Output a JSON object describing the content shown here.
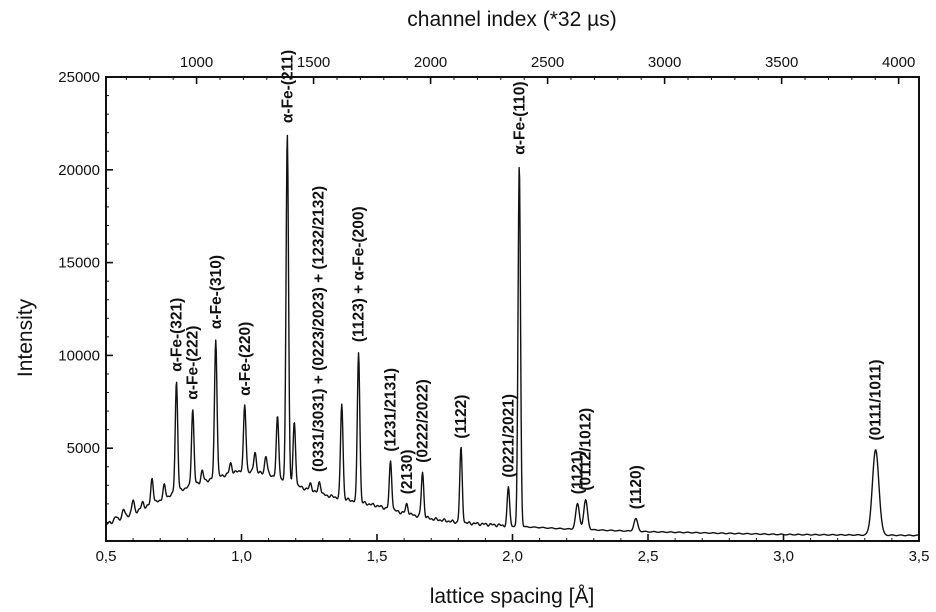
{
  "chart_data": {
    "type": "line",
    "title": "",
    "xlabel": "lattice spacing [Å]",
    "ylabel": "Intensity",
    "top_xlabel": "channel index (*32 µs)",
    "xlim": [
      0.5,
      3.5
    ],
    "ylim": [
      0,
      25000
    ],
    "top_xlim": [
      613,
      4087
    ],
    "x_ticks": [
      0.5,
      1.0,
      1.5,
      2.0,
      2.5,
      3.0,
      3.5
    ],
    "x_tick_labels": [
      "0,5",
      "1,0",
      "1,5",
      "2,0",
      "2,5",
      "3,0",
      "3,5"
    ],
    "y_ticks": [
      5000,
      10000,
      15000,
      20000,
      25000
    ],
    "y_tick_labels": [
      "5000",
      "10000",
      "15000",
      "20000",
      "25000"
    ],
    "top_ticks": [
      1000,
      1500,
      2000,
      2500,
      3000,
      3500,
      4000
    ],
    "top_tick_labels": [
      "1000",
      "1500",
      "2000",
      "2500",
      "3000",
      "3500",
      "4000"
    ],
    "grid": false,
    "baseline": [
      [
        0.5,
        900
      ],
      [
        0.6,
        1500
      ],
      [
        0.7,
        2200
      ],
      [
        0.8,
        2900
      ],
      [
        0.9,
        3400
      ],
      [
        1.0,
        3800
      ],
      [
        1.1,
        3600
      ],
      [
        1.2,
        3000
      ],
      [
        1.3,
        2500
      ],
      [
        1.4,
        2200
      ],
      [
        1.5,
        1900
      ],
      [
        1.6,
        1500
      ],
      [
        1.7,
        1200
      ],
      [
        1.8,
        1000
      ],
      [
        1.9,
        900
      ],
      [
        2.0,
        800
      ],
      [
        2.2,
        650
      ],
      [
        2.5,
        500
      ],
      [
        3.0,
        350
      ],
      [
        3.5,
        300
      ]
    ],
    "peaks": [
      {
        "x": 0.535,
        "y": 1300
      },
      {
        "x": 0.565,
        "y": 1700
      },
      {
        "x": 0.6,
        "y": 2200
      },
      {
        "x": 0.635,
        "y": 2100
      },
      {
        "x": 0.67,
        "y": 3400
      },
      {
        "x": 0.715,
        "y": 3000
      },
      {
        "x": 0.76,
        "y": 8600
      },
      {
        "x": 0.82,
        "y": 7100
      },
      {
        "x": 0.855,
        "y": 3800
      },
      {
        "x": 0.905,
        "y": 10900
      },
      {
        "x": 0.96,
        "y": 4200
      },
      {
        "x": 1.012,
        "y": 7300
      },
      {
        "x": 1.05,
        "y": 4800
      },
      {
        "x": 1.09,
        "y": 4600
      },
      {
        "x": 1.133,
        "y": 6700
      },
      {
        "x": 1.169,
        "y": 22000
      },
      {
        "x": 1.195,
        "y": 6400
      },
      {
        "x": 1.255,
        "y": 3100
      },
      {
        "x": 1.288,
        "y": 3200
      },
      {
        "x": 1.37,
        "y": 7400
      },
      {
        "x": 1.432,
        "y": 10200
      },
      {
        "x": 1.55,
        "y": 4300
      },
      {
        "x": 1.61,
        "y": 2000
      },
      {
        "x": 1.668,
        "y": 3700
      },
      {
        "x": 1.81,
        "y": 5000
      },
      {
        "x": 1.985,
        "y": 2900
      },
      {
        "x": 2.025,
        "y": 20300
      },
      {
        "x": 2.24,
        "y": 2000
      },
      {
        "x": 2.27,
        "y": 2200
      },
      {
        "x": 2.455,
        "y": 1200
      },
      {
        "x": 3.34,
        "y": 4900
      }
    ],
    "annotations": [
      {
        "text": "α-Fe-(321)",
        "x": 0.76,
        "y": 8900
      },
      {
        "text": "α-Fe-(222)",
        "x": 0.82,
        "y": 7400
      },
      {
        "text": "α-Fe-(310)",
        "x": 0.905,
        "y": 11200
      },
      {
        "text": "α-Fe-(220)",
        "x": 1.012,
        "y": 7600
      },
      {
        "text": "α-Fe-(211)",
        "x": 1.169,
        "y": 22300
      },
      {
        "text": "(0331/3031) + (0223/2023) + (1232/2132)",
        "x": 1.285,
        "y": 3500
      },
      {
        "text": "(1123) + α-Fe-(200)",
        "x": 1.432,
        "y": 10500
      },
      {
        "text": "(1231/2131)",
        "x": 1.55,
        "y": 4600
      },
      {
        "text": "(2130)",
        "x": 1.61,
        "y": 2300
      },
      {
        "text": "(0222/2022)",
        "x": 1.668,
        "y": 4000
      },
      {
        "text": "(1122)",
        "x": 1.81,
        "y": 5300
      },
      {
        "text": "(0221/2021)",
        "x": 1.985,
        "y": 3200
      },
      {
        "text": "α-Fe-(110)",
        "x": 2.025,
        "y": 20600
      },
      {
        "text": "(1121)",
        "x": 2.24,
        "y": 2300
      },
      {
        "text": "(0112/1012)",
        "x": 2.27,
        "y": 2500
      },
      {
        "text": "(1120)",
        "x": 2.455,
        "y": 1500
      },
      {
        "text": "(0111/1011)",
        "x": 3.34,
        "y": 5200
      }
    ]
  }
}
